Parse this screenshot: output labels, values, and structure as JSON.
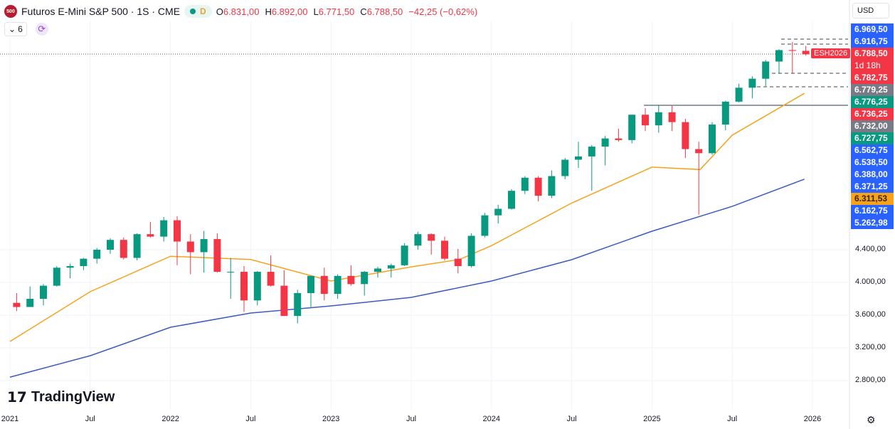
{
  "header": {
    "logo": "500",
    "title": "Futuros E-Mini S&P 500 · 1S · CME",
    "interval_badge": "D",
    "ohlc": {
      "o_label": "O",
      "o": "6.831,00",
      "h_label": "H",
      "h": "6.892,00",
      "l_label": "L",
      "l": "6.771,50",
      "c_label": "C",
      "c": "6.788,50",
      "change": "−42,25 (−0,62%)"
    },
    "indicator_count": "6",
    "currency": "USD"
  },
  "symbol_tag": "ESH2026",
  "countdown": "1d 18h",
  "price_labels": [
    {
      "text": "6.969,50",
      "color": "#2962ff"
    },
    {
      "text": "6.916,75",
      "color": "#2962ff"
    },
    {
      "text": "6.788,50",
      "color": "#f23645"
    },
    {
      "text": "6.782,75",
      "color": "#f23645"
    },
    {
      "text": "6.779,25",
      "color": "#787b86"
    },
    {
      "text": "6.776,25",
      "color": "#089981"
    },
    {
      "text": "6.736,25",
      "color": "#f23645"
    },
    {
      "text": "6.732,00",
      "color": "#787b86"
    },
    {
      "text": "6.727,75",
      "color": "#089981"
    },
    {
      "text": "6.562,75",
      "color": "#2962ff"
    },
    {
      "text": "6.538,50",
      "color": "#2962ff"
    },
    {
      "text": "6.388,00",
      "color": "#2962ff"
    },
    {
      "text": "6.371,25",
      "color": "#2962ff"
    },
    {
      "text": "6.311,53",
      "color": "#f7a21b"
    },
    {
      "text": "6.162,75",
      "color": "#2962ff"
    },
    {
      "text": "5.262,98",
      "color": "#2962ff"
    }
  ],
  "price_axis": [
    {
      "value": 4400,
      "text": "4.400,00"
    },
    {
      "value": 4000,
      "text": "4.000,00"
    },
    {
      "value": 3600,
      "text": "3.600,00"
    },
    {
      "value": 3200,
      "text": "3.200,00"
    },
    {
      "value": 2800,
      "text": "2.800,00"
    }
  ],
  "time_axis": [
    {
      "t": 2021,
      "text": "2021"
    },
    {
      "t": 2021.5,
      "text": "Jul"
    },
    {
      "t": 2022,
      "text": "2022"
    },
    {
      "t": 2022.5,
      "text": "Jul"
    },
    {
      "t": 2023,
      "text": "2023"
    },
    {
      "t": 2023.5,
      "text": "Jul"
    },
    {
      "t": 2024,
      "text": "2024"
    },
    {
      "t": 2024.5,
      "text": "Jul"
    },
    {
      "t": 2025,
      "text": "2025"
    },
    {
      "t": 2025.5,
      "text": "Jul"
    },
    {
      "t": 2026,
      "text": "2026"
    }
  ],
  "brand": "TradingView",
  "chart_data": {
    "type": "candlestick",
    "scale": "linear",
    "ylim": [
      2600,
      7100
    ],
    "xlim": [
      2021,
      2026.5
    ],
    "colors": {
      "up": "#089981",
      "down": "#f23645",
      "ma_fast": "#f7a21b",
      "ma_slow": "#3a5bbf"
    },
    "monthly_ohlc_from": "2021-01",
    "ohlc": [
      [
        3750,
        3870,
        3650,
        3700
      ],
      [
        3700,
        3950,
        3700,
        3800
      ],
      [
        3800,
        3980,
        3720,
        3960
      ],
      [
        3960,
        4200,
        3950,
        4180
      ],
      [
        4180,
        4230,
        4050,
        4200
      ],
      [
        4200,
        4300,
        4150,
        4290
      ],
      [
        4290,
        4420,
        4230,
        4400
      ],
      [
        4400,
        4540,
        4350,
        4520
      ],
      [
        4520,
        4550,
        4280,
        4300
      ],
      [
        4300,
        4600,
        4270,
        4590
      ],
      [
        4590,
        4740,
        4550,
        4560
      ],
      [
        4560,
        4800,
        4500,
        4760
      ],
      [
        4760,
        4810,
        4210,
        4500
      ],
      [
        4500,
        4590,
        4100,
        4370
      ],
      [
        4370,
        4630,
        4120,
        4530
      ],
      [
        4530,
        4600,
        4120,
        4130
      ],
      [
        4130,
        4300,
        3800,
        4130
      ],
      [
        4130,
        4200,
        3640,
        3780
      ],
      [
        3780,
        4140,
        3720,
        4130
      ],
      [
        4130,
        4330,
        3950,
        3960
      ],
      [
        3960,
        4150,
        3590,
        3590
      ],
      [
        3590,
        3910,
        3500,
        3870
      ],
      [
        3870,
        4080,
        3700,
        4080
      ],
      [
        4080,
        4180,
        3780,
        3860
      ],
      [
        3860,
        4100,
        3800,
        4080
      ],
      [
        4080,
        4210,
        3960,
        3980
      ],
      [
        3980,
        4140,
        3840,
        4130
      ],
      [
        4130,
        4190,
        4060,
        4170
      ],
      [
        4170,
        4230,
        4060,
        4210
      ],
      [
        4210,
        4480,
        4200,
        4450
      ],
      [
        4450,
        4620,
        4400,
        4590
      ],
      [
        4590,
        4600,
        4340,
        4510
      ],
      [
        4510,
        4560,
        4270,
        4290
      ],
      [
        4290,
        4410,
        4110,
        4200
      ],
      [
        4200,
        4600,
        4180,
        4570
      ],
      [
        4570,
        4850,
        4550,
        4820
      ],
      [
        4820,
        4950,
        4720,
        4900
      ],
      [
        4900,
        5140,
        4890,
        5120
      ],
      [
        5120,
        5300,
        5080,
        5280
      ],
      [
        5280,
        5300,
        4990,
        5060
      ],
      [
        5060,
        5370,
        5030,
        5300
      ],
      [
        5300,
        5520,
        5260,
        5500
      ],
      [
        5500,
        5720,
        5400,
        5540
      ],
      [
        5540,
        5680,
        5120,
        5660
      ],
      [
        5660,
        5790,
        5430,
        5760
      ],
      [
        5760,
        5880,
        5720,
        5740
      ],
      [
        5740,
        6050,
        5700,
        6050
      ],
      [
        6050,
        6130,
        5850,
        5920
      ],
      [
        5920,
        6160,
        5830,
        6080
      ],
      [
        6080,
        6170,
        5850,
        5960
      ],
      [
        5960,
        6000,
        5520,
        5630
      ],
      [
        5630,
        5720,
        4830,
        5580
      ],
      [
        5580,
        5960,
        5560,
        5930
      ],
      [
        5930,
        6220,
        5860,
        6210
      ],
      [
        6210,
        6430,
        6200,
        6380
      ],
      [
        6380,
        6520,
        6250,
        6490
      ],
      [
        6490,
        6720,
        6400,
        6700
      ],
      [
        6700,
        6850,
        6550,
        6840
      ],
      [
        6840,
        6940,
        6550,
        6830
      ],
      [
        6831,
        6892,
        6771.5,
        6788.5
      ]
    ],
    "ma_fast": [
      [
        2021,
        3278
      ],
      [
        2021.5,
        3887
      ],
      [
        2022,
        4320
      ],
      [
        2022.5,
        4280
      ],
      [
        2023,
        4017
      ],
      [
        2023.5,
        4190
      ],
      [
        2023.8,
        4280
      ],
      [
        2024,
        4450
      ],
      [
        2024.5,
        4970
      ],
      [
        2025,
        5410
      ],
      [
        2025.3,
        5380
      ],
      [
        2025.5,
        5800
      ],
      [
        2025.95,
        6311.53
      ]
    ],
    "ma_slow": [
      [
        2021,
        2843
      ],
      [
        2021.5,
        3104
      ],
      [
        2022,
        3452
      ],
      [
        2022.5,
        3626
      ],
      [
        2023,
        3713
      ],
      [
        2023.5,
        3817
      ],
      [
        2024,
        4017
      ],
      [
        2024.5,
        4278
      ],
      [
        2025,
        4626
      ],
      [
        2025.5,
        4930
      ],
      [
        2025.95,
        5262.98
      ]
    ]
  }
}
